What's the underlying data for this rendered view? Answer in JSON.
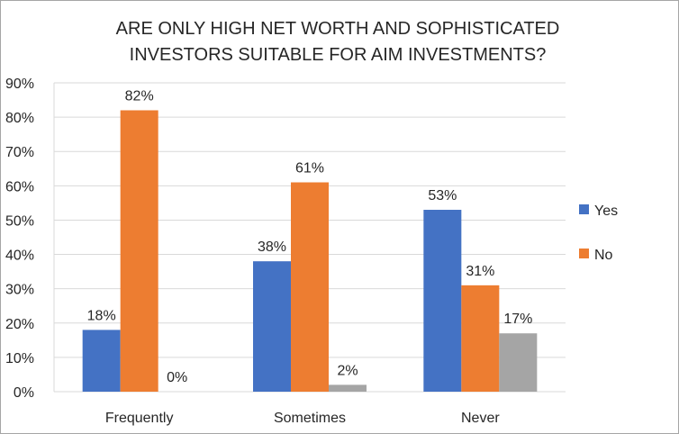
{
  "chart_data": {
    "type": "bar",
    "title_lines": [
      "ARE ONLY HIGH NET WORTH AND SOPHISTICATED",
      "INVESTORS SUITABLE FOR AIM INVESTMENTS?"
    ],
    "categories": [
      "Frequently",
      "Sometimes",
      "Never"
    ],
    "series": [
      {
        "name": "Yes",
        "values": [
          18,
          38,
          53
        ],
        "color": "#4472C4",
        "labels": [
          "18%",
          "38%",
          "53%"
        ]
      },
      {
        "name": "No",
        "values": [
          82,
          61,
          31
        ],
        "color": "#ED7D31",
        "labels": [
          "82%",
          "61%",
          "31%"
        ]
      },
      {
        "name": null,
        "values": [
          0,
          2,
          17
        ],
        "color": "#A5A5A5",
        "labels": [
          "0%",
          "2%",
          "17%"
        ]
      }
    ],
    "ylim": [
      0,
      90
    ],
    "yticks": [
      "0%",
      "10%",
      "20%",
      "30%",
      "40%",
      "50%",
      "60%",
      "70%",
      "80%",
      "90%"
    ],
    "grid": true,
    "legend": "right",
    "xlabel": "",
    "ylabel": ""
  }
}
